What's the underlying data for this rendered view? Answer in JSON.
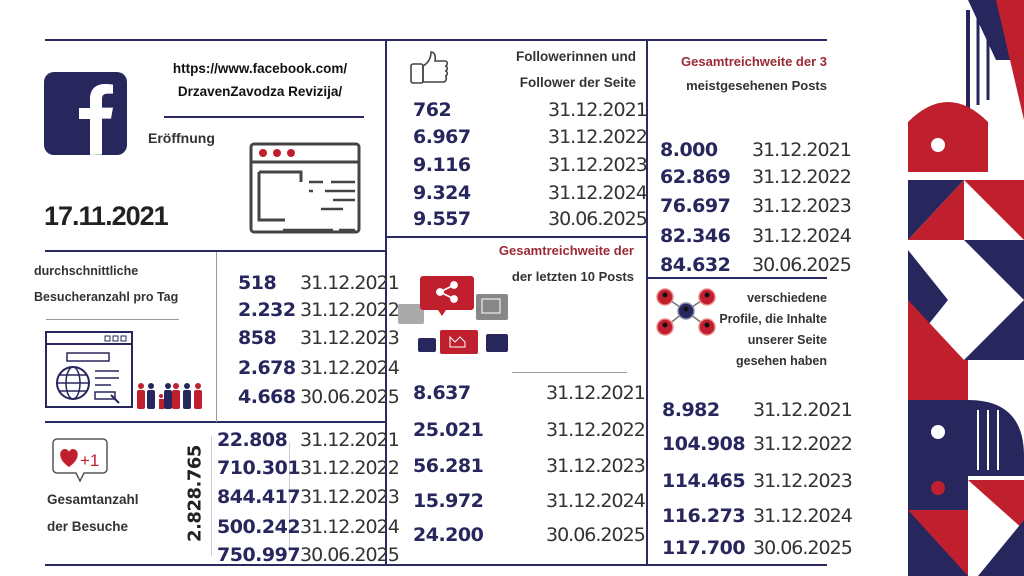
{
  "colors": {
    "navy": "#27275e",
    "red": "#c0202e",
    "accent_text": "#9a2a35"
  },
  "page": {
    "url_line1": "https://www.facebook.com/",
    "url_line2": "DrzavenZavodza Revizija/",
    "opening_label": "Eröffnung",
    "opening_date": "17.11.2021"
  },
  "followers": {
    "title_line1": "Followerinnen und",
    "title_line2": "Follower der Seite",
    "rows": [
      {
        "value": "762",
        "date": "31.12.2021"
      },
      {
        "value": "6.967",
        "date": "31.12.2022"
      },
      {
        "value": "9.116",
        "date": "31.12.2023"
      },
      {
        "value": "9.324",
        "date": "31.12.2024"
      },
      {
        "value": "9.557",
        "date": "30.06.2025"
      }
    ]
  },
  "top3": {
    "title_line1": "Gesamtreichweite der 3",
    "title_line2": "meistgesehenen Posts",
    "rows": [
      {
        "value": "8.000",
        "date": "31.12.2021"
      },
      {
        "value": "62.869",
        "date": "31.12.2022"
      },
      {
        "value": "76.697",
        "date": "31.12.2023"
      },
      {
        "value": "82.346",
        "date": "31.12.2024"
      },
      {
        "value": "84.632",
        "date": "30.06.2025"
      }
    ]
  },
  "avg_visitors": {
    "title_line1": "durchschnittliche",
    "title_line2": "Besucheranzahl pro Tag",
    "rows": [
      {
        "value": "518",
        "date": "31.12.2021"
      },
      {
        "value": "2.232",
        "date": "31.12.2022"
      },
      {
        "value": "858",
        "date": "31.12.2023"
      },
      {
        "value": "2.678",
        "date": "31.12.2024"
      },
      {
        "value": "4.668",
        "date": "30.06.2025"
      }
    ]
  },
  "reach10": {
    "title_line1": "Gesamtreichweite der",
    "title_line2": "der letzten 10 Posts",
    "rows": [
      {
        "value": "8.637",
        "date": "31.12.2021"
      },
      {
        "value": "25.021",
        "date": "31.12.2022"
      },
      {
        "value": "56.281",
        "date": "31.12.2023"
      },
      {
        "value": "15.972",
        "date": "31.12.2024"
      },
      {
        "value": "24.200",
        "date": "30.06.2025"
      }
    ]
  },
  "profiles": {
    "title_line1": "verschiedene",
    "title_line2": "Profile, die Inhalte",
    "title_line3": "unserer Seite",
    "title_line4": "gesehen haben",
    "rows": [
      {
        "value": "8.982",
        "date": "31.12.2021"
      },
      {
        "value": "104.908",
        "date": "31.12.2022"
      },
      {
        "value": "114.465",
        "date": "31.12.2023"
      },
      {
        "value": "116.273",
        "date": "31.12.2024"
      },
      {
        "value": "117.700",
        "date": "30.06.2025"
      }
    ]
  },
  "visits": {
    "title_line1": "Gesamtanzahl",
    "title_line2": "der Besuche",
    "total": "2.828.765",
    "badge": "+1",
    "rows": [
      {
        "value": "22.808",
        "date": "31.12.2021"
      },
      {
        "value": "710.301",
        "date": "31.12.2022"
      },
      {
        "value": "844.417",
        "date": "31.12.2023"
      },
      {
        "value": "500.242",
        "date": "31.12.2024"
      },
      {
        "value": "750.997",
        "date": "30.06.2025"
      }
    ]
  }
}
